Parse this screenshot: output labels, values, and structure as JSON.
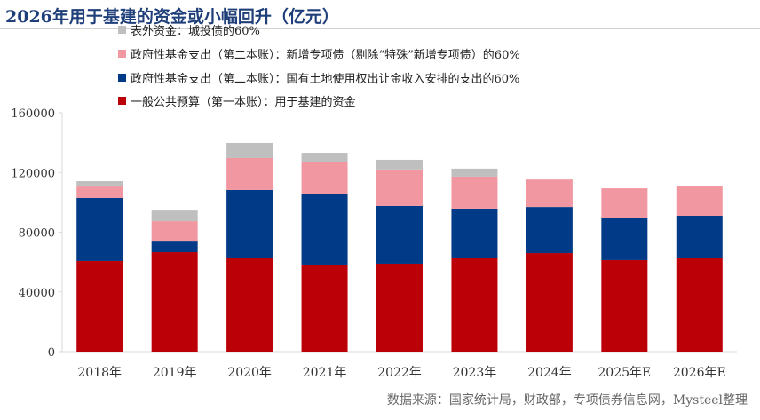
{
  "title": "2026年用于基建的资金或小幅回升（亿元）",
  "source": "数据来源：国家统计局，财政部，专项债券信息网，Mysteel整理",
  "chart_data": {
    "type": "bar",
    "stacked": true,
    "categories": [
      "2018年",
      "2019年",
      "2020年",
      "2021年",
      "2022年",
      "2023年",
      "2024年",
      "2025年E",
      "2026年E"
    ],
    "ylim": [
      0,
      160000
    ],
    "yticks": [
      0,
      40000,
      80000,
      120000,
      160000
    ],
    "legend_placement": "top-left",
    "series": [
      {
        "name": "一般公共预算（第一本账）：用于基建的资金",
        "color": "#bb0008",
        "values": [
          60700,
          66600,
          62500,
          58300,
          58900,
          62500,
          66000,
          61300,
          63000
        ]
      },
      {
        "name": "政府性基金支出（第二本账）：国有土地使用权出让金收入安排的支出的60%",
        "color": "#013a86",
        "values": [
          42200,
          7700,
          45800,
          47000,
          38700,
          33300,
          30900,
          28500,
          28000
        ]
      },
      {
        "name": "政府性基金支出（第二本账）：新增专项债（剔除“特殊”新增专项债）的60%",
        "color": "#f197a1",
        "values": [
          7700,
          13100,
          21400,
          21400,
          24400,
          21400,
          18400,
          19600,
          19600
        ]
      },
      {
        "name": "表外资金：城投债的60%",
        "color": "#bfbfbf",
        "values": [
          3600,
          7100,
          10100,
          6500,
          6500,
          5400,
          0,
          0,
          0
        ]
      }
    ]
  }
}
